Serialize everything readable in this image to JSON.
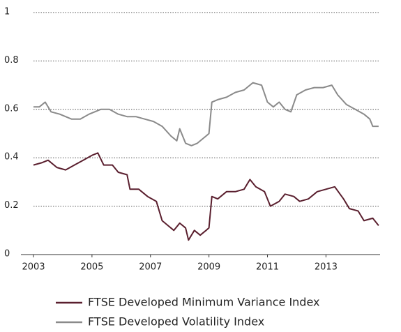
{
  "chart_data": {
    "type": "line",
    "xlim": [
      2003,
      2014.85
    ],
    "xticks": [
      2003,
      2005,
      2007,
      2009,
      2011,
      2013
    ],
    "ylim": [
      0,
      1
    ],
    "yticks": [
      0,
      0.2,
      0.4,
      0.6,
      0.8,
      1
    ],
    "grid": true,
    "legend": "bottom",
    "series": [
      {
        "name": "FTSE Developed Minimum Variance Index",
        "color": "#5a1f2e",
        "x": [
          2003.0,
          2003.3,
          2003.5,
          2003.8,
          2004.1,
          2004.4,
          2004.7,
          2005.0,
          2005.2,
          2005.4,
          2005.7,
          2005.9,
          2006.2,
          2006.3,
          2006.6,
          2006.9,
          2007.2,
          2007.4,
          2007.6,
          2007.8,
          2008.0,
          2008.2,
          2008.3,
          2008.5,
          2008.7,
          2008.9,
          2009.0,
          2009.1,
          2009.3,
          2009.6,
          2009.9,
          2010.2,
          2010.4,
          2010.6,
          2010.9,
          2011.1,
          2011.4,
          2011.6,
          2011.9,
          2012.1,
          2012.4,
          2012.7,
          2013.0,
          2013.3,
          2013.6,
          2013.8,
          2014.1,
          2014.3,
          2014.6,
          2014.8
        ],
        "values": [
          0.37,
          0.38,
          0.39,
          0.36,
          0.35,
          0.37,
          0.39,
          0.41,
          0.42,
          0.37,
          0.37,
          0.34,
          0.33,
          0.27,
          0.27,
          0.24,
          0.22,
          0.14,
          0.12,
          0.1,
          0.13,
          0.11,
          0.06,
          0.1,
          0.08,
          0.1,
          0.11,
          0.24,
          0.23,
          0.26,
          0.26,
          0.27,
          0.31,
          0.28,
          0.26,
          0.2,
          0.22,
          0.25,
          0.24,
          0.22,
          0.23,
          0.26,
          0.27,
          0.28,
          0.23,
          0.19,
          0.18,
          0.14,
          0.15,
          0.12
        ]
      },
      {
        "name": "FTSE Developed Volatility Index",
        "color": "#8a8a8a",
        "x": [
          2003.0,
          2003.2,
          2003.4,
          2003.6,
          2003.9,
          2004.3,
          2004.6,
          2004.9,
          2005.3,
          2005.6,
          2005.9,
          2006.2,
          2006.5,
          2006.8,
          2007.1,
          2007.4,
          2007.7,
          2007.9,
          2008.0,
          2008.2,
          2008.4,
          2008.6,
          2008.9,
          2009.0,
          2009.1,
          2009.3,
          2009.6,
          2009.9,
          2010.2,
          2010.5,
          2010.8,
          2011.0,
          2011.2,
          2011.4,
          2011.6,
          2011.8,
          2012.0,
          2012.3,
          2012.6,
          2012.9,
          2013.2,
          2013.4,
          2013.7,
          2014.0,
          2014.3,
          2014.5,
          2014.6,
          2014.8
        ],
        "values": [
          0.61,
          0.61,
          0.63,
          0.59,
          0.58,
          0.56,
          0.56,
          0.58,
          0.6,
          0.6,
          0.58,
          0.57,
          0.57,
          0.56,
          0.55,
          0.53,
          0.49,
          0.47,
          0.52,
          0.46,
          0.45,
          0.46,
          0.49,
          0.5,
          0.63,
          0.64,
          0.65,
          0.67,
          0.68,
          0.71,
          0.7,
          0.63,
          0.61,
          0.63,
          0.6,
          0.59,
          0.66,
          0.68,
          0.69,
          0.69,
          0.7,
          0.66,
          0.62,
          0.6,
          0.58,
          0.56,
          0.53,
          0.53
        ]
      }
    ]
  }
}
